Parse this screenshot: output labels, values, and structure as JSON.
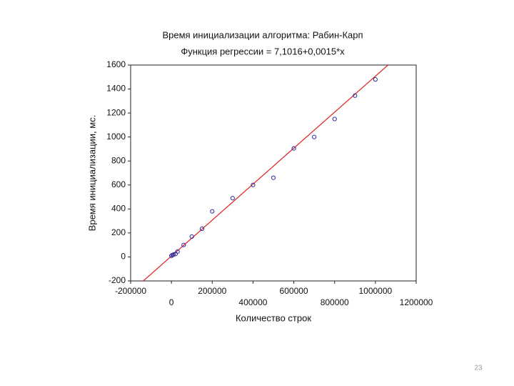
{
  "chart_data": {
    "type": "scatter",
    "title": "Время инициализации алгоритма: Рабин-Карп",
    "subtitle": "Функция регрессии = 7,1016+0,0015*x",
    "x_label": "Количество строк",
    "y_label": "Время инициализации, мс.",
    "regression": {
      "intercept": 7.1016,
      "slope": 0.0015,
      "color": "#e02020"
    },
    "series": [
      {
        "name": "Рабин-Карп",
        "color": "#2a2aa0",
        "x": [
          0,
          5000,
          10000,
          20000,
          30000,
          60000,
          100000,
          150000,
          200000,
          300000,
          400000,
          500000,
          600000,
          700000,
          800000,
          900000,
          1000000
        ],
        "values": [
          10,
          15,
          20,
          25,
          45,
          100,
          170,
          235,
          380,
          490,
          600,
          660,
          905,
          1000,
          1150,
          1345,
          1480
        ]
      }
    ],
    "xlim": [
      -200000,
      1200000
    ],
    "xticks": [
      -200000,
      0,
      200000,
      400000,
      600000,
      800000,
      1000000,
      1200000
    ],
    "ylim": [
      -200,
      1600
    ],
    "yticks": [
      -200,
      0,
      200,
      400,
      600,
      800,
      1000,
      1200,
      1400,
      1600
    ],
    "grid": false
  },
  "page_number": "23"
}
